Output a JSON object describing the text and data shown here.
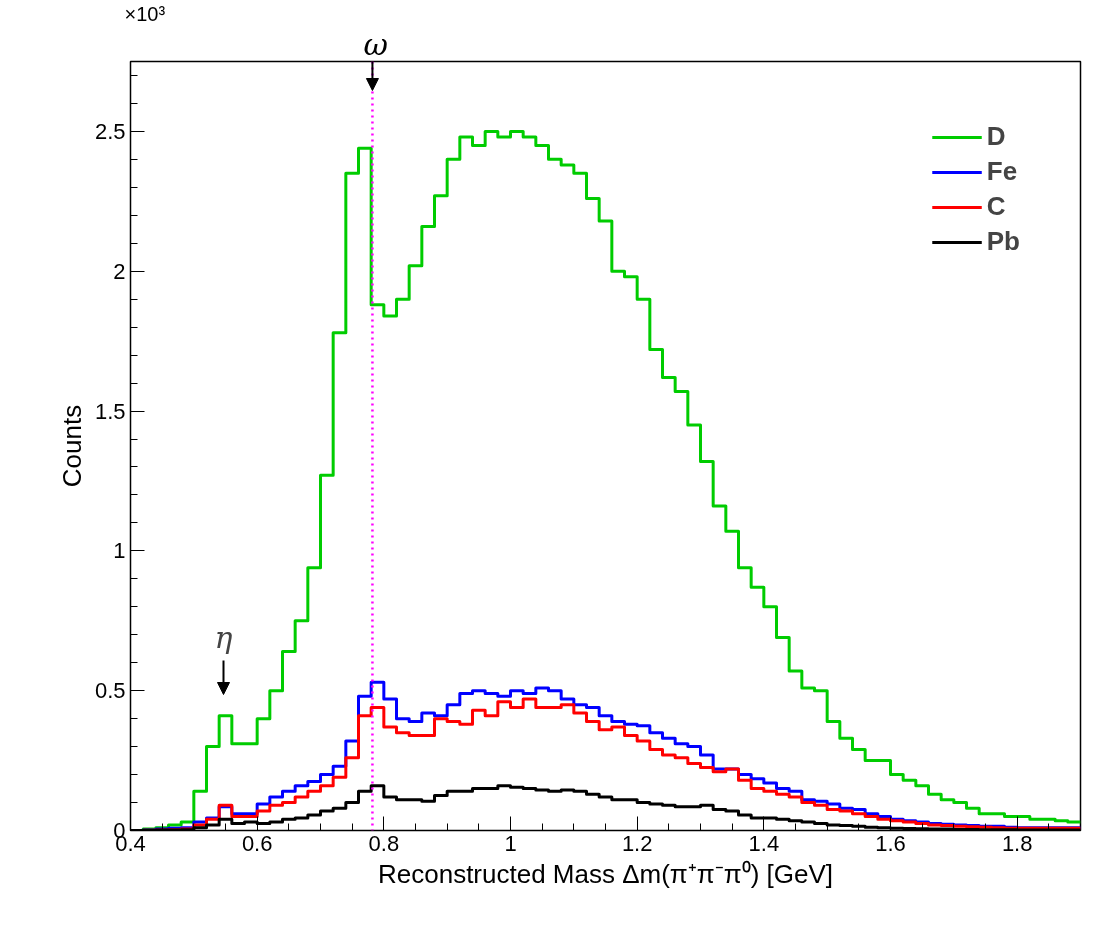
{
  "chart_data": {
    "type": "histogram",
    "xlabel": "Reconstructed Mass Δm(π⁺π⁻π⁰) [GeV]",
    "ylabel": "Counts",
    "bins": [
      0.4,
      0.42,
      0.44,
      0.46,
      0.48,
      0.5,
      0.52,
      0.54,
      0.56,
      0.58,
      0.6,
      0.62,
      0.64,
      0.66,
      0.68,
      0.7,
      0.72,
      0.74,
      0.76,
      0.78,
      0.8,
      0.82,
      0.84,
      0.86,
      0.88,
      0.9,
      0.92,
      0.94,
      0.96,
      0.98,
      1.0,
      1.02,
      1.04,
      1.06,
      1.08,
      1.1,
      1.12,
      1.14,
      1.16,
      1.18,
      1.2,
      1.22,
      1.24,
      1.26,
      1.28,
      1.3,
      1.32,
      1.34,
      1.36,
      1.38,
      1.4,
      1.42,
      1.44,
      1.46,
      1.48,
      1.5,
      1.52,
      1.54,
      1.56,
      1.58,
      1.6,
      1.62,
      1.64,
      1.66,
      1.68,
      1.7,
      1.72,
      1.74,
      1.76,
      1.78,
      1.8,
      1.82,
      1.84,
      1.86,
      1.88,
      1.9
    ],
    "series": [
      {
        "name": "D",
        "color": "#00cc00",
        "values": [
          0,
          0.005,
          0.01,
          0.02,
          0.03,
          0.14,
          0.3,
          0.41,
          0.31,
          0.31,
          0.4,
          0.5,
          0.64,
          0.75,
          0.94,
          1.27,
          1.78,
          2.35,
          2.44,
          1.88,
          1.84,
          1.9,
          2.02,
          2.16,
          2.27,
          2.4,
          2.48,
          2.45,
          2.5,
          2.48,
          2.5,
          2.48,
          2.45,
          2.4,
          2.38,
          2.35,
          2.26,
          2.18,
          2.0,
          1.98,
          1.9,
          1.72,
          1.62,
          1.57,
          1.45,
          1.32,
          1.16,
          1.07,
          0.94,
          0.87,
          0.8,
          0.69,
          0.57,
          0.51,
          0.5,
          0.39,
          0.33,
          0.29,
          0.25,
          0.25,
          0.2,
          0.18,
          0.16,
          0.13,
          0.11,
          0.1,
          0.08,
          0.06,
          0.06,
          0.05,
          0.05,
          0.04,
          0.04,
          0.035,
          0.03
        ]
      },
      {
        "name": "Fe",
        "color": "#0000ff",
        "values": [
          0,
          0.002,
          0.005,
          0.008,
          0.01,
          0.03,
          0.045,
          0.085,
          0.06,
          0.06,
          0.095,
          0.12,
          0.14,
          0.16,
          0.175,
          0.2,
          0.23,
          0.32,
          0.48,
          0.53,
          0.47,
          0.4,
          0.39,
          0.42,
          0.41,
          0.45,
          0.49,
          0.5,
          0.49,
          0.48,
          0.5,
          0.49,
          0.51,
          0.5,
          0.47,
          0.45,
          0.44,
          0.41,
          0.39,
          0.38,
          0.375,
          0.35,
          0.33,
          0.31,
          0.3,
          0.27,
          0.22,
          0.22,
          0.2,
          0.185,
          0.17,
          0.15,
          0.14,
          0.11,
          0.105,
          0.095,
          0.08,
          0.075,
          0.06,
          0.05,
          0.04,
          0.035,
          0.03,
          0.025,
          0.022,
          0.02,
          0.018,
          0.015,
          0.015,
          0.012,
          0.01,
          0.01,
          0.01,
          0.01,
          0.01
        ]
      },
      {
        "name": "C",
        "color": "#ff0000",
        "values": [
          0,
          0.001,
          0.002,
          0.003,
          0.005,
          0.02,
          0.04,
          0.09,
          0.05,
          0.05,
          0.07,
          0.09,
          0.1,
          0.12,
          0.14,
          0.16,
          0.19,
          0.26,
          0.41,
          0.44,
          0.37,
          0.35,
          0.34,
          0.34,
          0.4,
          0.39,
          0.38,
          0.43,
          0.41,
          0.46,
          0.44,
          0.47,
          0.44,
          0.44,
          0.45,
          0.42,
          0.39,
          0.36,
          0.37,
          0.34,
          0.32,
          0.29,
          0.27,
          0.26,
          0.24,
          0.225,
          0.21,
          0.22,
          0.18,
          0.15,
          0.14,
          0.13,
          0.12,
          0.1,
          0.09,
          0.075,
          0.07,
          0.06,
          0.05,
          0.04,
          0.035,
          0.03,
          0.025,
          0.02,
          0.018,
          0.015,
          0.013,
          0.012,
          0.01,
          0.008,
          0.008,
          0.008,
          0.008,
          0.008,
          0.008
        ]
      },
      {
        "name": "Pb",
        "color": "#000000",
        "values": [
          0,
          0.001,
          0.002,
          0.002,
          0.003,
          0.01,
          0.02,
          0.04,
          0.025,
          0.03,
          0.025,
          0.03,
          0.04,
          0.045,
          0.055,
          0.07,
          0.08,
          0.1,
          0.14,
          0.16,
          0.12,
          0.11,
          0.11,
          0.105,
          0.125,
          0.14,
          0.14,
          0.15,
          0.15,
          0.16,
          0.155,
          0.15,
          0.145,
          0.14,
          0.145,
          0.14,
          0.13,
          0.12,
          0.11,
          0.11,
          0.1,
          0.095,
          0.09,
          0.085,
          0.085,
          0.09,
          0.075,
          0.07,
          0.055,
          0.045,
          0.045,
          0.04,
          0.035,
          0.03,
          0.025,
          0.02,
          0.018,
          0.015,
          0.012,
          0.01,
          0.008,
          0.007,
          0.006,
          0.005,
          0.005,
          0.004,
          0.004,
          0.003,
          0.003,
          0.003,
          0.002,
          0.002,
          0.002,
          0.002,
          0.002
        ]
      }
    ],
    "xlim": [
      0.4,
      1.9
    ],
    "xticks": [
      0.4,
      0.6,
      0.8,
      1,
      1.2,
      1.4,
      1.6,
      1.8
    ],
    "ylim": [
      0,
      2.75
    ],
    "yticks": [
      0,
      0.5,
      1,
      1.5,
      2,
      2.5
    ],
    "ref_lines": [
      {
        "axis": "x",
        "value": 0.782,
        "label": "ω",
        "color": "#ff00ff",
        "line_style": "dotted"
      }
    ],
    "annotations": [
      "η",
      "×10³"
    ],
    "legend": "top right",
    "grid": false
  }
}
